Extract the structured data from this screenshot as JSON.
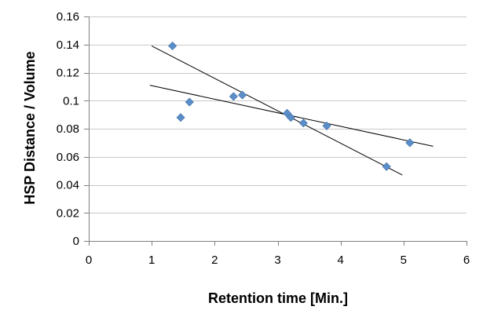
{
  "chart_data": {
    "type": "scatter",
    "title": "",
    "xlabel": "Retention time [Min.]",
    "ylabel": "HSP Distance / Volume",
    "xlim": [
      0,
      6
    ],
    "ylim": [
      0,
      0.16
    ],
    "x_ticks": [
      0,
      1,
      2,
      3,
      4,
      5,
      6
    ],
    "y_ticks": [
      0,
      0.02,
      0.04,
      0.06,
      0.08,
      0.1,
      0.12,
      0.14,
      0.16
    ],
    "x_tick_labels": [
      "0",
      "1",
      "2",
      "3",
      "4",
      "5",
      "6"
    ],
    "y_tick_labels": [
      "0",
      "0.02",
      "0.04",
      "0.06",
      "0.08",
      "0.1",
      "0.12",
      "0.14",
      "0.16"
    ],
    "grid": "horizontal",
    "legend": "none",
    "marker": "diamond",
    "colors": {
      "marker": "#5b8ec9",
      "marker_edge": "#4a7ab0",
      "grid": "#c8c8c8",
      "axis": "#808080",
      "trendline": "#000000"
    },
    "series": [
      {
        "points": [
          {
            "x": 1.33,
            "y": 0.139
          },
          {
            "x": 1.46,
            "y": 0.088
          },
          {
            "x": 1.6,
            "y": 0.099
          },
          {
            "x": 2.3,
            "y": 0.103
          },
          {
            "x": 2.44,
            "y": 0.104
          },
          {
            "x": 3.15,
            "y": 0.091
          },
          {
            "x": 3.21,
            "y": 0.088
          },
          {
            "x": 3.41,
            "y": 0.084
          },
          {
            "x": 3.78,
            "y": 0.082
          },
          {
            "x": 4.73,
            "y": 0.053
          },
          {
            "x": 5.1,
            "y": 0.07
          }
        ]
      }
    ],
    "trendlines": [
      {
        "x": [
          1.0,
          4.98
        ],
        "y": [
          0.139,
          0.047
        ]
      },
      {
        "x": [
          0.97,
          5.47
        ],
        "y": [
          0.111,
          0.0675
        ]
      }
    ]
  }
}
